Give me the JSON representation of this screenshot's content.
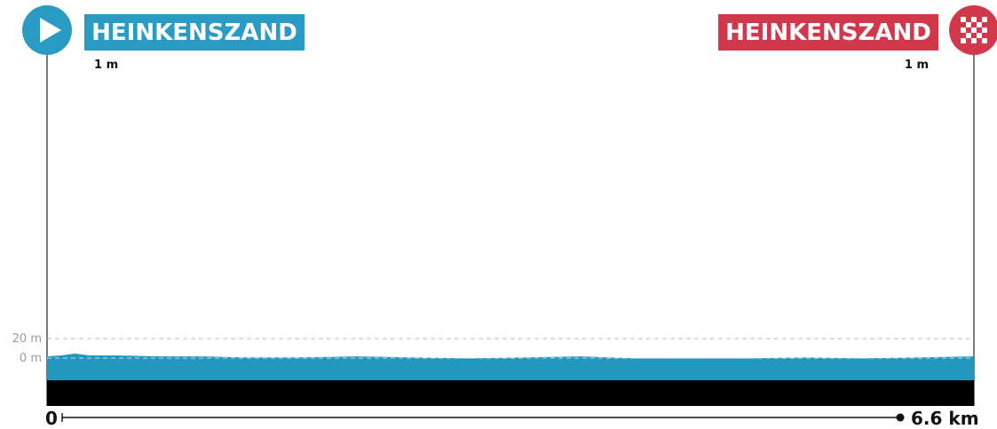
{
  "chart_data": {
    "type": "area",
    "title": "",
    "xlabel": "",
    "ylabel": "",
    "x_unit": "km",
    "y_unit": "m",
    "xlim": [
      0,
      6.6
    ],
    "ylim": [
      -20,
      250
    ],
    "distance_start_label": "0",
    "distance_end_label": "6.6 km",
    "gridlines": [
      {
        "value": 20,
        "label": "20 m"
      },
      {
        "value": 0,
        "label": "0 m"
      }
    ],
    "start": {
      "name": "HEINKENSZAND",
      "elevation_label": "1 m",
      "color": "#2a9bc4"
    },
    "finish": {
      "name": "HEINKENSZAND",
      "elevation_label": "1 m",
      "color": "#d1384c"
    },
    "profile": {
      "fill_color": "#2497c0",
      "base_color": "#000000",
      "x": [
        0,
        0.1,
        0.2,
        0.3,
        0.5,
        0.8,
        1.1,
        1.4,
        1.8,
        2.2,
        2.6,
        3.0,
        3.4,
        3.8,
        4.2,
        4.6,
        5.0,
        5.4,
        5.8,
        6.2,
        6.6
      ],
      "y": [
        1,
        2,
        4,
        2,
        2,
        1,
        1,
        0,
        0,
        1,
        0,
        -1,
        0,
        1,
        -1,
        -1,
        -1,
        0,
        -1,
        0,
        1
      ]
    }
  }
}
